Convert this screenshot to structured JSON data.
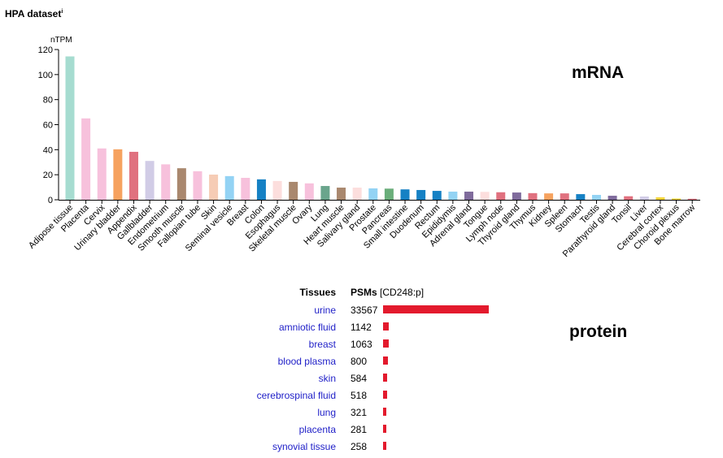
{
  "title": "HPA dataset",
  "title_marker": "i",
  "mrna_label": "mRNA",
  "protein_label": "protein",
  "chart_data": [
    {
      "type": "bar",
      "ylabel": "nTPM",
      "ylim": [
        0,
        120
      ],
      "yticks": [
        0,
        20,
        40,
        60,
        80,
        100,
        120
      ],
      "grid": false,
      "categories": [
        "Adipose tissue",
        "Placenta",
        "Cervix",
        "Urinary bladder",
        "Appendix",
        "Gallbladder",
        "Endometrium",
        "Smooth muscle",
        "Fallopian tube",
        "Skin",
        "Seminal vesicle",
        "Breast",
        "Colon",
        "Esophagus",
        "Skeletal muscle",
        "Ovary",
        "Lung",
        "Heart muscle",
        "Salivary gland",
        "Prostate",
        "Pancreas",
        "Small intestine",
        "Duodenum",
        "Rectum",
        "Epididymis",
        "Adrenal gland",
        "Tongue",
        "Lymph node",
        "Thyroid gland",
        "Thymus",
        "Kidney",
        "Spleen",
        "Stomach",
        "Testis",
        "Parathyroid gland",
        "Tonsil",
        "Liver",
        "Cerebral cortex",
        "Choroid plexus",
        "Bone marrow"
      ],
      "values": [
        114.5,
        65,
        41,
        40.3,
        38.3,
        31,
        28.3,
        25.2,
        22.8,
        20.1,
        18.9,
        17.5,
        16.3,
        15,
        14.3,
        13.1,
        11,
        9.7,
        9.7,
        9.1,
        8.9,
        8.3,
        7.8,
        7.1,
        6.5,
        6.5,
        6.3,
        6,
        5.8,
        5.3,
        5.1,
        5.1,
        4.5,
        3.9,
        3.2,
        2.8,
        2.6,
        2,
        1,
        0.8
      ],
      "colors": [
        "#a6dcd0",
        "#f7c1dc",
        "#f7c1dc",
        "#f6a25f",
        "#e0717f",
        "#d1cce6",
        "#f7c1dc",
        "#a9886e",
        "#f7c1dc",
        "#f6ccb5",
        "#93d3f4",
        "#f7c1dc",
        "#1681c4",
        "#fcdedd",
        "#a9886e",
        "#f7c1dc",
        "#6aa58c",
        "#a9886e",
        "#fcdedd",
        "#93d3f4",
        "#6aae7a",
        "#1681c4",
        "#1681c4",
        "#1681c4",
        "#93d3f4",
        "#7f6b9c",
        "#fcdedd",
        "#e0717f",
        "#7f6b9c",
        "#e0717f",
        "#f6a25f",
        "#e0717f",
        "#1681c4",
        "#93d3f4",
        "#7f6b9c",
        "#e0717f",
        "#d1cce6",
        "#f6d43a",
        "#f6d43a",
        "#e0717f"
      ]
    },
    {
      "type": "bar",
      "orientation": "horizontal",
      "header_tissues": "Tissues",
      "header_psms": "PSMs",
      "header_psms_suffix": "[CD248:p]",
      "categories": [
        "urine",
        "amniotic fluid",
        "breast",
        "blood plasma",
        "skin",
        "cerebrospinal fluid",
        "lung",
        "placenta",
        "synovial tissue"
      ],
      "values": [
        33567,
        1142,
        1063,
        800,
        584,
        518,
        321,
        281,
        258
      ],
      "value_labels": [
        "33567",
        "1142",
        "1063",
        "800",
        "584",
        "518",
        "321",
        "281",
        "258"
      ],
      "color": "#e31a2d"
    }
  ]
}
